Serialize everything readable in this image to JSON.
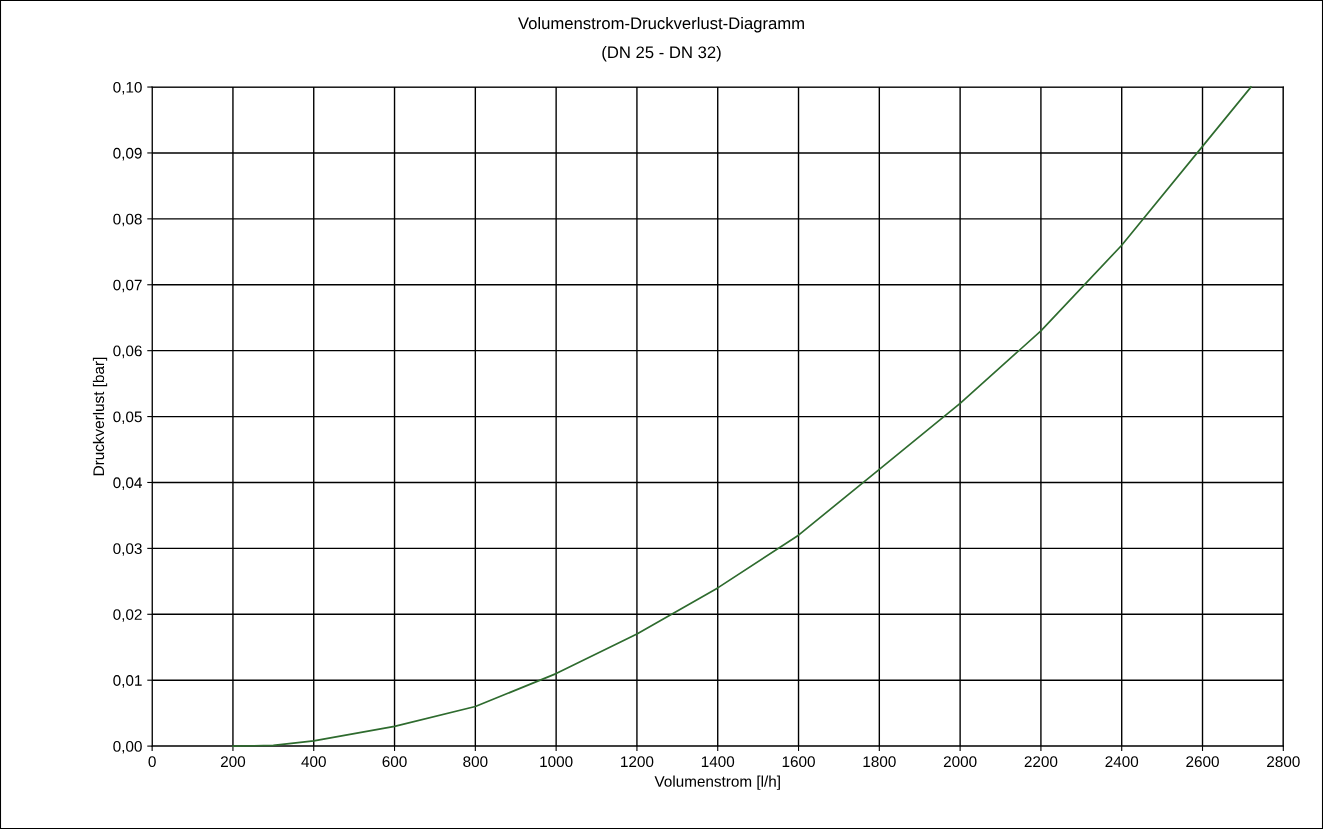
{
  "chart_data": {
    "type": "line",
    "title": "Volumenstrom-Druckverlust-Diagramm",
    "subtitle": "(DN 25 - DN 32)",
    "xlabel": "Volumenstrom [l/h]",
    "ylabel": "Druckverlust [bar]",
    "x": [
      200,
      300,
      400,
      600,
      800,
      1000,
      1200,
      1400,
      1600,
      1800,
      2000,
      2200,
      2400,
      2600,
      2720
    ],
    "series": [
      {
        "color": "#2e6b2e",
        "values": [
          0.0,
          0.0001,
          0.0008,
          0.003,
          0.006,
          0.011,
          0.017,
          0.024,
          0.032,
          0.042,
          0.052,
          0.063,
          0.076,
          0.091,
          0.1
        ]
      }
    ],
    "xlim": [
      0,
      2800
    ],
    "xticks": [
      0,
      200,
      400,
      600,
      800,
      1000,
      1200,
      1400,
      1600,
      1800,
      2000,
      2200,
      2400,
      2600,
      2800
    ],
    "ylim": [
      0,
      0.1
    ],
    "yticks": [
      {
        "value": 0,
        "label": "0,00"
      },
      {
        "value": 0.01,
        "label": "0,01"
      },
      {
        "value": 0.02,
        "label": "0,02"
      },
      {
        "value": 0.03,
        "label": "0,03"
      },
      {
        "value": 0.04,
        "label": "0,04"
      },
      {
        "value": 0.05,
        "label": "0,05"
      },
      {
        "value": 0.06,
        "label": "0,06"
      },
      {
        "value": 0.07,
        "label": "0,07"
      },
      {
        "value": 0.08,
        "label": "0,08"
      },
      {
        "value": 0.09,
        "label": "0,09"
      },
      {
        "value": 0.1,
        "label": "0,10"
      }
    ],
    "grid": true,
    "marker": "none",
    "line_style": "solid",
    "legend": false
  }
}
